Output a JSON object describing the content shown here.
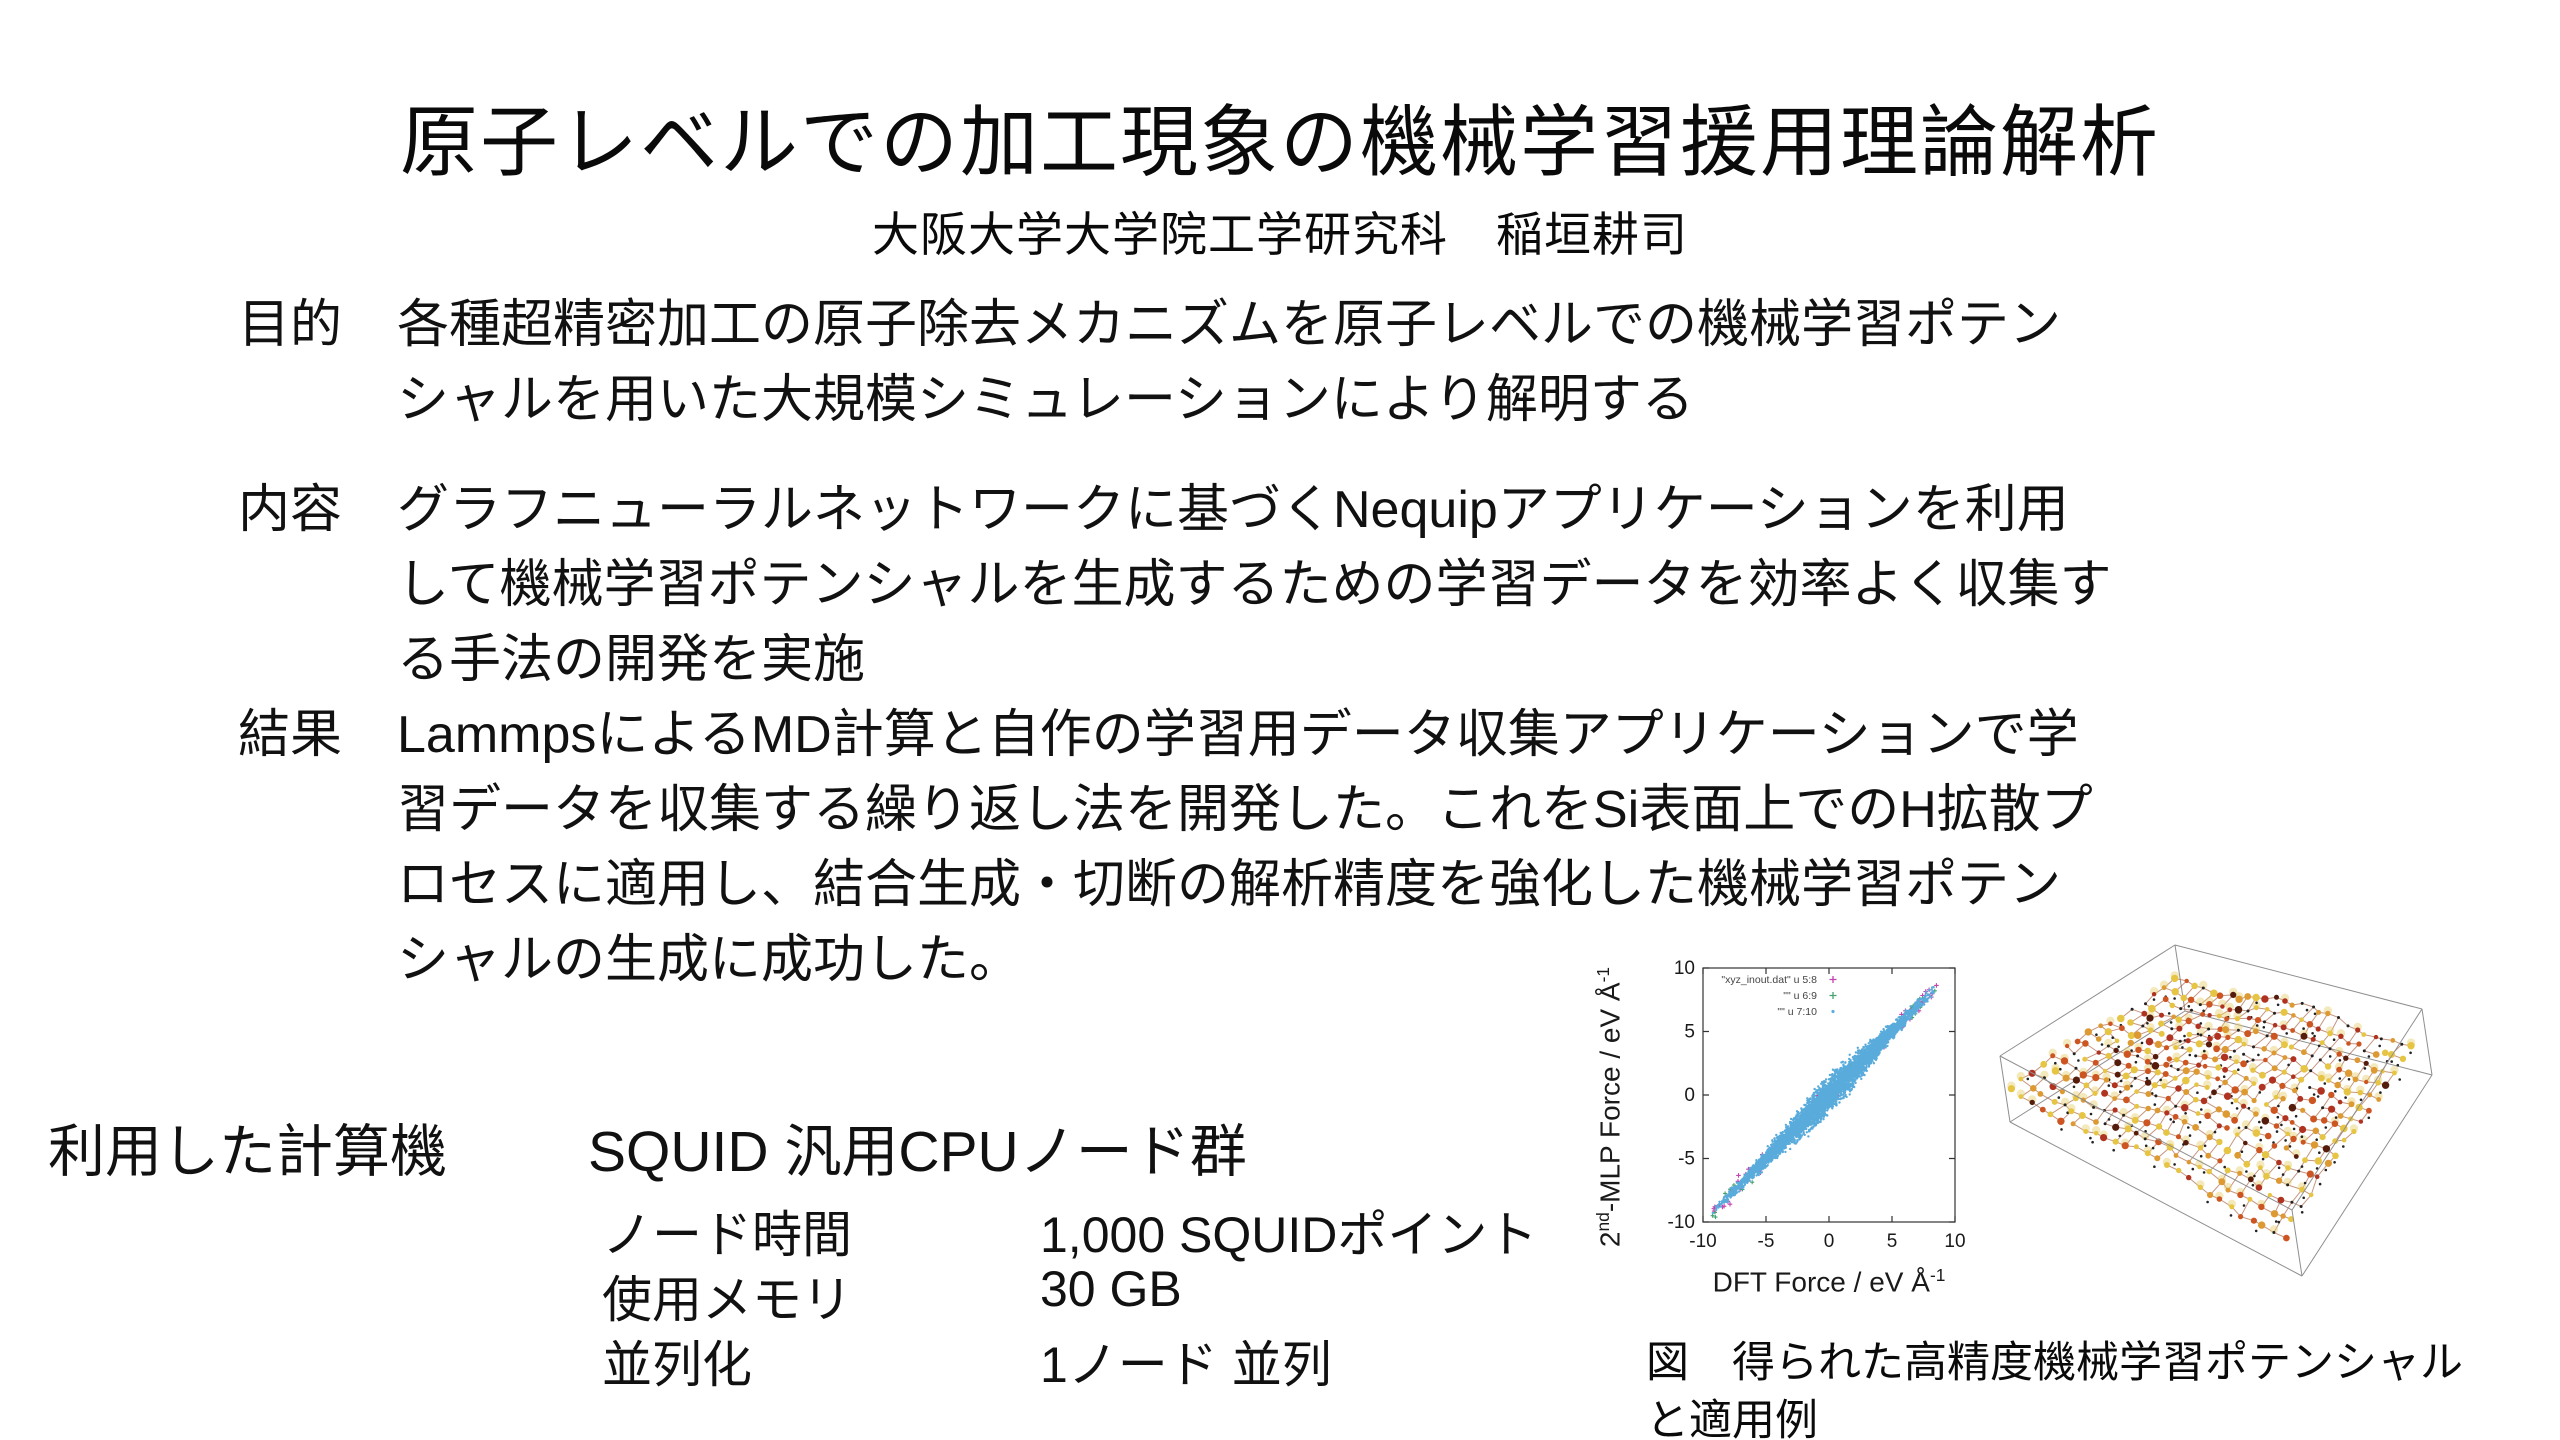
{
  "slide": {
    "title": "原子レベルでの加工現象の機械学習援用理論解析",
    "subtitle": "大阪大学大学院工学研究科　稲垣耕司"
  },
  "sections": [
    {
      "label": "目的",
      "lines": [
        "各種超精密加工の原子除去メカニズムを原子レベルでの機械学習ポテン",
        "シャルを用いた大規模シミュレーションにより解明する"
      ]
    },
    {
      "label": "内容",
      "lines": [
        "グラフニューラルネットワークに基づくNequipアプリケーションを利用",
        "して機械学習ポテンシャルを生成するための学習データを効率よく収集す",
        "る手法の開発を実施"
      ]
    },
    {
      "label": "結果",
      "lines": [
        "LammpsによるMD計算と自作の学習用データ収集アプリケーションで学",
        "習データを収集する繰り返し法を開発した。これをSi表面上でのH拡散プ",
        "ロセスに適用し、結合生成・切断の解析精度を強化した機械学習ポテン",
        "シャルの生成に成功した。"
      ]
    }
  ],
  "compute": {
    "heading": "利用した計算機",
    "system": "SQUID 汎用CPUノード群",
    "rows": [
      {
        "label": "ノード時間",
        "value": "1,000 SQUIDポイント"
      },
      {
        "label": "使用メモリ",
        "value": "30 GB"
      },
      {
        "label": "並列化",
        "value": "1ノード 並列"
      }
    ]
  },
  "figure": {
    "caption_line1": "図　得られた高精度機械学習ポテンシャル",
    "caption_line2": "と適用例"
  },
  "chart_data": {
    "type": "scatter",
    "title": "",
    "xlabel": {
      "base": "DFT Force / eV Å",
      "sup": "-1"
    },
    "ylabel": {
      "base": "2",
      "sup1": "nd",
      "mid": "-MLP Force / eV Å",
      "sup2": "-1"
    },
    "xlim": [
      -10,
      10
    ],
    "ylim": [
      -10,
      10
    ],
    "xticks": [
      "-10",
      "-5",
      "0",
      "5",
      "10"
    ],
    "yticks": [
      "10",
      "5",
      "0",
      "-5",
      "-10"
    ],
    "grid": false,
    "legend_position": "top-left-inside",
    "legend": [
      {
        "label": "\"xyz_inout.dat\" u 5:8",
        "marker": "+",
        "color": "#c343b0"
      },
      {
        "label": "\"\" u 6:9",
        "marker": "+",
        "color": "#46a371"
      },
      {
        "label": "\"\" u 7:10",
        "marker": ".",
        "color": "#5caede"
      }
    ],
    "series_description": "Dense linear correlation band y = x of MLP force vs DFT force",
    "band": {
      "x_min": -9.3,
      "x_max": 8.6,
      "slope": 1.0,
      "sigma_core_min": 0.15,
      "sigma_core_peak": 0.48,
      "sigma_outlier": 1.0,
      "n_core": 4600,
      "n_outlier_magenta": 95,
      "n_outlier_green": 70
    },
    "colors": {
      "core": "#58abdb",
      "outlier1": "#c343b0",
      "outlier2": "#46a371",
      "axis": "#333333"
    }
  },
  "structure": {
    "description": "3D ball-and-stick model of H-covered Si surface slab in wireframe simulation box",
    "atom_palette": [
      "#e7c544",
      "#dd9a33",
      "#cc5522",
      "#b03322",
      "#551c0c",
      "#222222"
    ],
    "halo_color": "#e7cf6a",
    "bond_color": "#a85c3c",
    "frame_color": "#8f8f8f"
  }
}
